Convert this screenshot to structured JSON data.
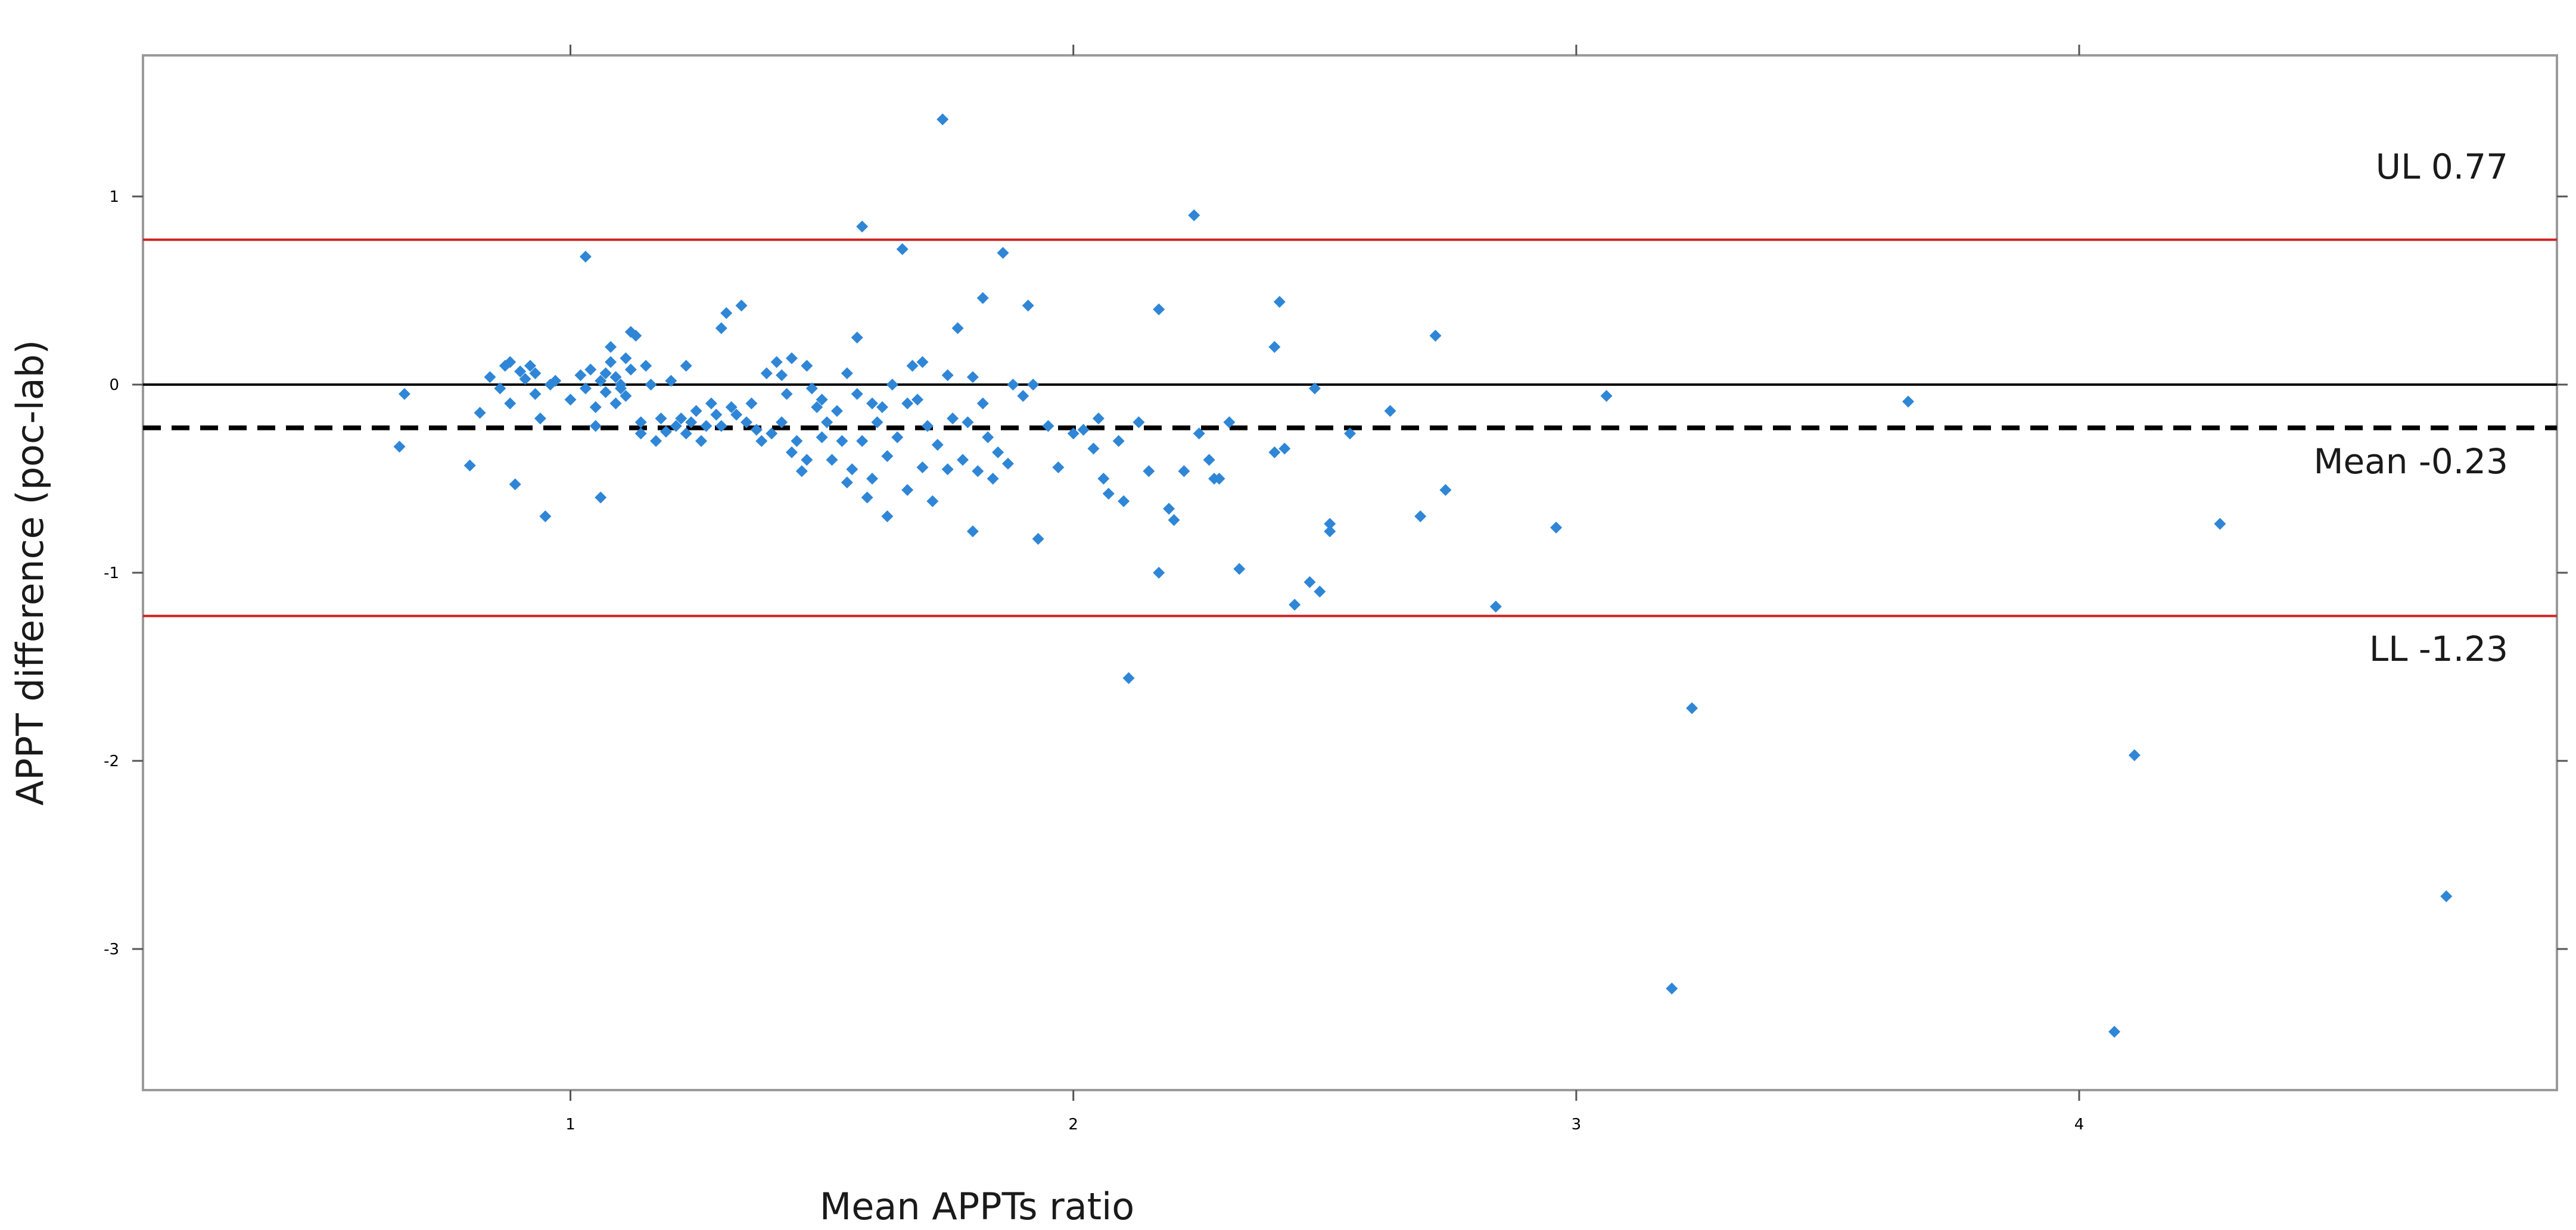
{
  "chart_data": {
    "type": "scatter",
    "title": "",
    "xlabel": "Mean APPTs ratio",
    "ylabel": "APPT difference (poc-lab)",
    "xlim": [
      0.15,
      4.95
    ],
    "ylim": [
      -3.75,
      1.75
    ],
    "x_ticks": [
      1,
      2,
      3,
      4
    ],
    "y_ticks": [
      1,
      0,
      -1,
      -2,
      -3
    ],
    "grid": false,
    "point_color": "#2f86d6",
    "reference_lines": [
      {
        "label": "UL 0.77",
        "y": 0.77,
        "style": "solid",
        "color": "#d02020"
      },
      {
        "label": "",
        "y": 0.0,
        "style": "solid",
        "color": "#000000"
      },
      {
        "label": "Mean -0.23",
        "y": -0.23,
        "style": "dashed",
        "color": "#000000"
      },
      {
        "label": "LL -1.23",
        "y": -1.23,
        "style": "solid",
        "color": "#d02020"
      }
    ],
    "points": [
      [
        0.67,
        -0.05
      ],
      [
        0.66,
        -0.33
      ],
      [
        0.8,
        -0.43
      ],
      [
        0.82,
        -0.15
      ],
      [
        0.84,
        0.04
      ],
      [
        0.86,
        -0.02
      ],
      [
        0.87,
        0.1
      ],
      [
        0.88,
        0.12
      ],
      [
        0.88,
        -0.1
      ],
      [
        0.89,
        -0.53
      ],
      [
        0.9,
        0.07
      ],
      [
        0.91,
        0.03
      ],
      [
        0.92,
        0.1
      ],
      [
        0.93,
        0.06
      ],
      [
        0.93,
        -0.05
      ],
      [
        0.94,
        -0.18
      ],
      [
        0.95,
        -0.7
      ],
      [
        0.96,
        0.0
      ],
      [
        0.97,
        0.02
      ],
      [
        1.0,
        -0.08
      ],
      [
        1.02,
        0.05
      ],
      [
        1.03,
        0.68
      ],
      [
        1.03,
        -0.02
      ],
      [
        1.04,
        0.08
      ],
      [
        1.05,
        -0.12
      ],
      [
        1.05,
        -0.22
      ],
      [
        1.06,
        -0.6
      ],
      [
        1.06,
        0.02
      ],
      [
        1.07,
        0.06
      ],
      [
        1.07,
        -0.04
      ],
      [
        1.08,
        0.12
      ],
      [
        1.08,
        0.2
      ],
      [
        1.09,
        -0.1
      ],
      [
        1.09,
        0.04
      ],
      [
        1.1,
        -0.02
      ],
      [
        1.1,
        0.0
      ],
      [
        1.11,
        0.14
      ],
      [
        1.11,
        -0.06
      ],
      [
        1.12,
        0.28
      ],
      [
        1.12,
        0.08
      ],
      [
        1.13,
        0.26
      ],
      [
        1.14,
        -0.2
      ],
      [
        1.14,
        -0.26
      ],
      [
        1.15,
        0.1
      ],
      [
        1.16,
        0.0
      ],
      [
        1.17,
        -0.3
      ],
      [
        1.18,
        -0.18
      ],
      [
        1.19,
        -0.25
      ],
      [
        1.2,
        0.02
      ],
      [
        1.21,
        -0.22
      ],
      [
        1.22,
        -0.18
      ],
      [
        1.23,
        -0.26
      ],
      [
        1.23,
        0.1
      ],
      [
        1.24,
        -0.2
      ],
      [
        1.25,
        -0.14
      ],
      [
        1.26,
        -0.3
      ],
      [
        1.27,
        -0.22
      ],
      [
        1.28,
        -0.1
      ],
      [
        1.29,
        -0.16
      ],
      [
        1.3,
        0.3
      ],
      [
        1.3,
        -0.22
      ],
      [
        1.31,
        0.38
      ],
      [
        1.32,
        -0.12
      ],
      [
        1.33,
        -0.16
      ],
      [
        1.34,
        0.42
      ],
      [
        1.35,
        -0.2
      ],
      [
        1.36,
        -0.1
      ],
      [
        1.37,
        -0.24
      ],
      [
        1.38,
        -0.3
      ],
      [
        1.39,
        0.06
      ],
      [
        1.4,
        -0.26
      ],
      [
        1.41,
        0.12
      ],
      [
        1.42,
        0.05
      ],
      [
        1.42,
        -0.2
      ],
      [
        1.43,
        -0.05
      ],
      [
        1.44,
        0.14
      ],
      [
        1.44,
        -0.36
      ],
      [
        1.45,
        -0.3
      ],
      [
        1.46,
        -0.46
      ],
      [
        1.47,
        0.1
      ],
      [
        1.47,
        -0.4
      ],
      [
        1.48,
        -0.02
      ],
      [
        1.49,
        -0.12
      ],
      [
        1.5,
        -0.08
      ],
      [
        1.5,
        -0.28
      ],
      [
        1.51,
        -0.2
      ],
      [
        1.52,
        -0.4
      ],
      [
        1.53,
        -0.14
      ],
      [
        1.54,
        -0.3
      ],
      [
        1.55,
        0.06
      ],
      [
        1.55,
        -0.52
      ],
      [
        1.56,
        -0.45
      ],
      [
        1.57,
        0.25
      ],
      [
        1.57,
        -0.05
      ],
      [
        1.58,
        0.84
      ],
      [
        1.58,
        -0.3
      ],
      [
        1.59,
        -0.6
      ],
      [
        1.6,
        -0.1
      ],
      [
        1.6,
        -0.5
      ],
      [
        1.61,
        -0.2
      ],
      [
        1.62,
        -0.12
      ],
      [
        1.63,
        -0.7
      ],
      [
        1.63,
        -0.38
      ],
      [
        1.64,
        0.0
      ],
      [
        1.65,
        -0.28
      ],
      [
        1.66,
        0.72
      ],
      [
        1.67,
        -0.1
      ],
      [
        1.67,
        -0.56
      ],
      [
        1.68,
        0.1
      ],
      [
        1.69,
        -0.08
      ],
      [
        1.7,
        -0.44
      ],
      [
        1.7,
        0.12
      ],
      [
        1.71,
        -0.22
      ],
      [
        1.72,
        -0.62
      ],
      [
        1.73,
        -0.32
      ],
      [
        1.74,
        1.41
      ],
      [
        1.75,
        0.05
      ],
      [
        1.75,
        -0.45
      ],
      [
        1.76,
        -0.18
      ],
      [
        1.77,
        0.3
      ],
      [
        1.78,
        -0.4
      ],
      [
        1.79,
        -0.2
      ],
      [
        1.8,
        0.04
      ],
      [
        1.8,
        -0.78
      ],
      [
        1.81,
        -0.46
      ],
      [
        1.82,
        0.46
      ],
      [
        1.82,
        -0.1
      ],
      [
        1.83,
        -0.28
      ],
      [
        1.84,
        -0.5
      ],
      [
        1.85,
        -0.36
      ],
      [
        1.86,
        0.7
      ],
      [
        1.87,
        -0.42
      ],
      [
        1.88,
        0.0
      ],
      [
        1.9,
        -0.06
      ],
      [
        1.91,
        0.42
      ],
      [
        1.92,
        0.0
      ],
      [
        1.93,
        -0.82
      ],
      [
        1.95,
        -0.22
      ],
      [
        1.97,
        -0.44
      ],
      [
        2.0,
        -0.26
      ],
      [
        2.02,
        -0.24
      ],
      [
        2.04,
        -0.34
      ],
      [
        2.05,
        -0.18
      ],
      [
        2.06,
        -0.5
      ],
      [
        2.07,
        -0.58
      ],
      [
        2.09,
        -0.3
      ],
      [
        2.1,
        -0.62
      ],
      [
        2.11,
        -1.56
      ],
      [
        2.13,
        -0.2
      ],
      [
        2.15,
        -0.46
      ],
      [
        2.17,
        0.4
      ],
      [
        2.17,
        -1.0
      ],
      [
        2.19,
        -0.66
      ],
      [
        2.2,
        -0.72
      ],
      [
        2.22,
        -0.46
      ],
      [
        2.24,
        0.9
      ],
      [
        2.25,
        -0.26
      ],
      [
        2.27,
        -0.4
      ],
      [
        2.28,
        -0.5
      ],
      [
        2.29,
        -0.5
      ],
      [
        2.31,
        -0.2
      ],
      [
        2.33,
        -0.98
      ],
      [
        2.4,
        0.2
      ],
      [
        2.4,
        -0.36
      ],
      [
        2.41,
        0.44
      ],
      [
        2.42,
        -0.34
      ],
      [
        2.44,
        -1.17
      ],
      [
        2.47,
        -1.05
      ],
      [
        2.48,
        -0.02
      ],
      [
        2.49,
        -1.1
      ],
      [
        2.51,
        -0.74
      ],
      [
        2.51,
        -0.78
      ],
      [
        2.55,
        -0.26
      ],
      [
        2.63,
        -0.14
      ],
      [
        2.69,
        -0.7
      ],
      [
        2.72,
        0.26
      ],
      [
        2.74,
        -0.56
      ],
      [
        2.84,
        -1.18
      ],
      [
        2.96,
        -0.76
      ],
      [
        3.06,
        -0.06
      ],
      [
        3.19,
        -3.21
      ],
      [
        3.23,
        -1.72
      ],
      [
        3.66,
        -0.09
      ],
      [
        4.07,
        -3.44
      ],
      [
        4.11,
        -1.97
      ],
      [
        4.28,
        -0.74
      ],
      [
        4.73,
        -2.72
      ]
    ]
  }
}
